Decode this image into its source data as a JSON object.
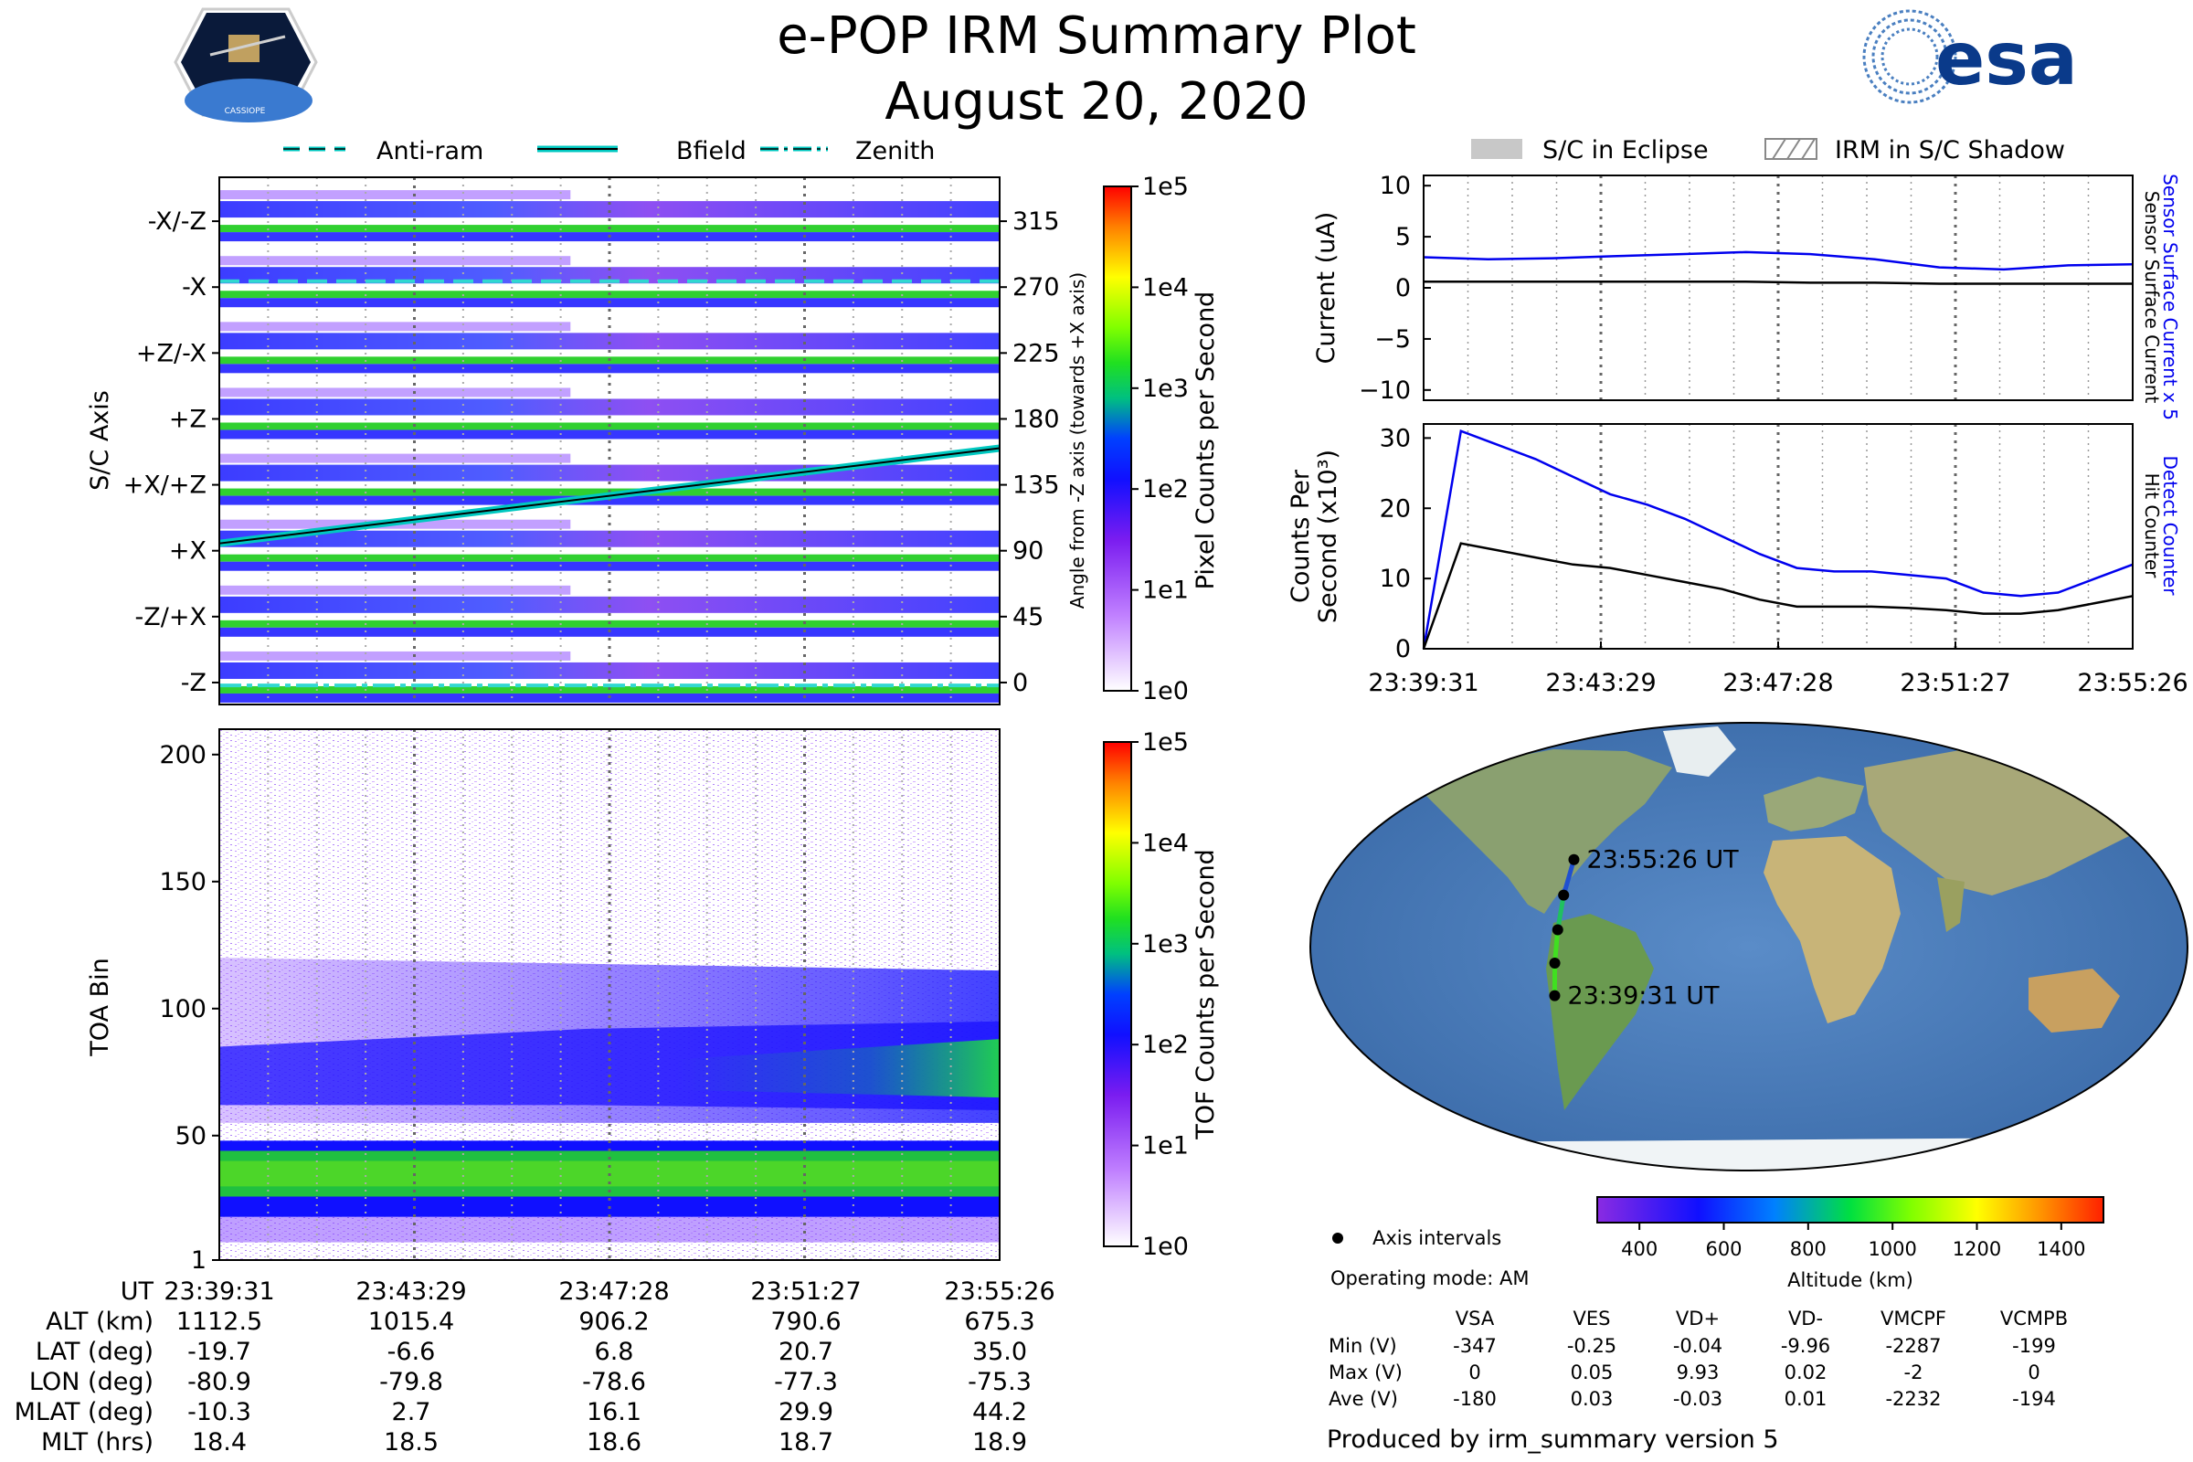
{
  "header": {
    "title": "e-POP IRM Summary Plot",
    "date": "August 20, 2020",
    "left_logo_text": "CASSIOPE",
    "right_logo_text": "esa"
  },
  "colors": {
    "blue_trace": "#0000ee",
    "black_trace": "#000000",
    "bfield_line": "#00e0c0",
    "eclipse_gray": "#c8c8c8"
  },
  "chart_data": [
    {
      "id": "pixel",
      "type": "heatmap",
      "legend": [
        "Anti-ram",
        "Bfield",
        "Zenith"
      ],
      "ylabel": "S/C Axis",
      "y_ticklabels": [
        "-X/-Z",
        "-X",
        "+Z/-X",
        "+Z",
        "+X/+Z",
        "+X",
        "-Z/+X",
        "-Z"
      ],
      "right_ylabel": "Angle from -Z axis (towards +X axis)",
      "right_ticks": [
        315,
        270,
        225,
        180,
        135,
        90,
        45,
        0
      ],
      "right_ylim": [
        -15,
        345
      ],
      "bfield_angle": {
        "start": 95,
        "end": 160
      },
      "antiram_angle": 274,
      "zenith_angle": -2,
      "colorbar": {
        "label": "Pixel Counts per Second",
        "ticks": [
          "1e5",
          "1e4",
          "1e3",
          "1e2",
          "1e1",
          "1e0"
        ]
      }
    },
    {
      "id": "toa",
      "type": "heatmap",
      "ylabel": "TOA Bin",
      "y_ticks": [
        1,
        50,
        100,
        150,
        200
      ],
      "ylim": [
        1,
        210
      ],
      "colorbar": {
        "label": "TOF Counts per Second",
        "ticks": [
          "1e5",
          "1e4",
          "1e3",
          "1e2",
          "1e1",
          "1e0"
        ]
      }
    },
    {
      "id": "current",
      "type": "line",
      "legend": [
        "S/C in Eclipse",
        "IRM in S/C Shadow"
      ],
      "ylabel": "Current (uA)",
      "ylim": [
        -11,
        11
      ],
      "y_ticks": [
        10,
        5,
        0,
        -5,
        -10
      ],
      "right_labels": [
        "Sensor Surface Current x 5",
        "Sensor Surface Current"
      ],
      "series": [
        {
          "name": "Sensor Surface Current x 5",
          "color": "#0000ee",
          "values": [
            3.0,
            2.8,
            2.9,
            3.1,
            3.3,
            3.5,
            3.3,
            2.8,
            2.0,
            1.8,
            2.2,
            2.3
          ]
        },
        {
          "name": "Sensor Surface Current",
          "color": "#000000",
          "values": [
            0.6,
            0.6,
            0.6,
            0.6,
            0.6,
            0.6,
            0.5,
            0.5,
            0.4,
            0.4,
            0.4,
            0.4
          ]
        }
      ]
    },
    {
      "id": "counts",
      "type": "line",
      "ylabel_lines": [
        "Counts Per",
        "Second (x10³)"
      ],
      "ylim": [
        0,
        32
      ],
      "y_ticks": [
        30,
        20,
        10,
        0
      ],
      "x_ticklabels": [
        "23:39:31",
        "23:43:29",
        "23:47:28",
        "23:51:27",
        "23:55:26"
      ],
      "right_labels": [
        "Detect Counter",
        "Hit Counter"
      ],
      "series": [
        {
          "name": "Detect Counter",
          "color": "#0000ee",
          "values": [
            0,
            31,
            29,
            27,
            24.5,
            22,
            20.5,
            18.5,
            16,
            13.5,
            11.5,
            11,
            11,
            10.5,
            10,
            8,
            7.5,
            8,
            10,
            12
          ]
        },
        {
          "name": "Hit Counter",
          "color": "#000000",
          "values": [
            0,
            15,
            14,
            13,
            12,
            11.5,
            10.5,
            9.5,
            8.5,
            7,
            6,
            6,
            6,
            5.8,
            5.5,
            5,
            5,
            5.5,
            6.5,
            7.5
          ]
        }
      ]
    },
    {
      "id": "altitude_colorbar",
      "type": "colorbar",
      "label": "Altitude (km)",
      "range": [
        300,
        1500
      ],
      "ticks": [
        400,
        600,
        800,
        1000,
        1200,
        1400
      ]
    }
  ],
  "map": {
    "start_label": "23:39:31 UT",
    "end_label": "23:55:26 UT",
    "track": [
      {
        "lon": -80.9,
        "lat": -19.7
      },
      {
        "lon": -79.8,
        "lat": -6.6
      },
      {
        "lon": -78.6,
        "lat": 6.8
      },
      {
        "lon": -77.3,
        "lat": 20.7
      },
      {
        "lon": -75.3,
        "lat": 35.0
      }
    ]
  },
  "info": {
    "axis_intervals": "Axis intervals",
    "operating_mode": "Operating mode: AM",
    "produced_by": "Produced by irm_summary version 5"
  },
  "voltage_table": {
    "columns": [
      "VSA",
      "VES",
      "VD+",
      "VD-",
      "VMCPF",
      "VCMPB"
    ],
    "rows": [
      {
        "label": "Min (V)",
        "values": [
          "-347",
          "-0.25",
          "-0.04",
          "-9.96",
          "-2287",
          "-199"
        ]
      },
      {
        "label": "Max (V)",
        "values": [
          "0",
          "0.05",
          "9.93",
          "0.02",
          "-2",
          "0"
        ]
      },
      {
        "label": "Ave (V)",
        "values": [
          "-180",
          "0.03",
          "-0.03",
          "0.01",
          "-2232",
          "-194"
        ]
      }
    ]
  },
  "ephemeris": {
    "rows": [
      {
        "label": "UT",
        "values": [
          "23:39:31",
          "23:43:29",
          "23:47:28",
          "23:51:27",
          "23:55:26"
        ]
      },
      {
        "label": "ALT (km)",
        "values": [
          "1112.5",
          "1015.4",
          "906.2",
          "790.6",
          "675.3"
        ]
      },
      {
        "label": "LAT (deg)",
        "values": [
          "-19.7",
          "-6.6",
          "6.8",
          "20.7",
          "35.0"
        ]
      },
      {
        "label": "LON (deg)",
        "values": [
          "-80.9",
          "-79.8",
          "-78.6",
          "-77.3",
          "-75.3"
        ]
      },
      {
        "label": "MLAT (deg)",
        "values": [
          "-10.3",
          "2.7",
          "16.1",
          "29.9",
          "44.2"
        ]
      },
      {
        "label": "MLT (hrs)",
        "values": [
          "18.4",
          "18.5",
          "18.6",
          "18.7",
          "18.9"
        ]
      }
    ]
  }
}
